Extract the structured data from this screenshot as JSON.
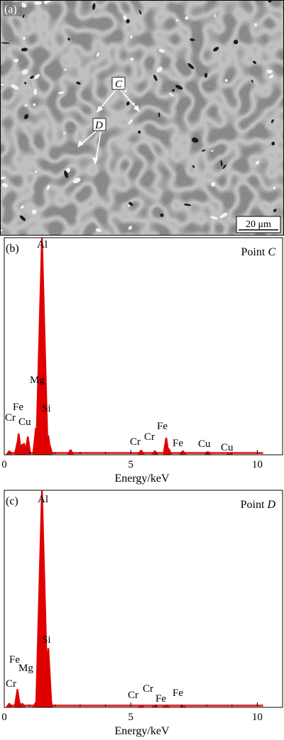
{
  "panel_a": {
    "label": "(a)",
    "arrow_label_c": "C",
    "arrow_label_d": "D",
    "scale_bar": "20 μm"
  },
  "chart_data": [
    {
      "type": "line",
      "panel_label": "(b)",
      "title": "Point C",
      "title_plain": "Point ",
      "title_italic": "C",
      "xlabel": "Energy/keV",
      "xlim": [
        0,
        11
      ],
      "x_ticks": [
        0,
        5,
        10
      ],
      "x_tick_labels": [
        "0",
        "5",
        "10"
      ],
      "ylim": [
        0,
        100
      ],
      "color": "#e00000",
      "x": [
        0.2,
        0.52,
        0.57,
        0.71,
        0.78,
        0.93,
        1.25,
        1.3,
        1.49,
        1.55,
        1.74,
        1.8,
        2.62,
        5.41,
        5.95,
        6.4,
        6.5,
        7.06,
        8.05,
        8.9
      ],
      "y": [
        1.5,
        5.5,
        9.5,
        4.5,
        5,
        8,
        12,
        9,
        100,
        10,
        8.5,
        4,
        2,
        1.8,
        1.5,
        7.5,
        2.5,
        1.5,
        1.2,
        0.5
      ],
      "peak_labels": [
        {
          "text": "Al",
          "x": 1.49
        },
        {
          "text": "Mg",
          "x": 1.25
        },
        {
          "text": "Si",
          "x": 1.74
        },
        {
          "text": "Fe",
          "x": 0.7
        },
        {
          "text": "Cr",
          "x": 0.57
        },
        {
          "text": "Cu",
          "x": 0.93
        },
        {
          "text": "Cr",
          "x": 5.41
        },
        {
          "text": "Cr",
          "x": 5.95
        },
        {
          "text": "Fe",
          "x": 6.4
        },
        {
          "text": "Fe",
          "x": 7.06
        },
        {
          "text": "Cu",
          "x": 8.05
        },
        {
          "text": "Cu",
          "x": 8.9
        }
      ]
    },
    {
      "type": "line",
      "panel_label": "(c)",
      "title": "Point D",
      "title_plain": "Point ",
      "title_italic": "D",
      "xlabel": "Energy/keV",
      "xlim": [
        0,
        11
      ],
      "x_ticks": [
        0,
        5,
        10
      ],
      "x_tick_labels": [
        "0",
        "5",
        "10"
      ],
      "ylim": [
        0,
        100
      ],
      "color": "#e00000",
      "x": [
        0.2,
        0.52,
        0.57,
        0.71,
        1.25,
        1.49,
        1.55,
        1.74,
        1.8,
        5.41,
        5.95,
        6.4,
        7.06
      ],
      "y": [
        1.5,
        8,
        3,
        1.5,
        2,
        100,
        10,
        27,
        5,
        0.5,
        0.5,
        0.8,
        0.5
      ],
      "peak_labels": [
        {
          "text": "Al",
          "x": 1.49
        },
        {
          "text": "Si",
          "x": 1.74
        },
        {
          "text": "Fe",
          "x": 0.71
        },
        {
          "text": "Mg",
          "x": 1.25
        },
        {
          "text": "Cr",
          "x": 0.57
        },
        {
          "text": "Cr",
          "x": 5.41
        },
        {
          "text": "Cr",
          "x": 5.95
        },
        {
          "text": "Fe",
          "x": 6.4
        },
        {
          "text": "Fe",
          "x": 7.06
        }
      ]
    }
  ]
}
